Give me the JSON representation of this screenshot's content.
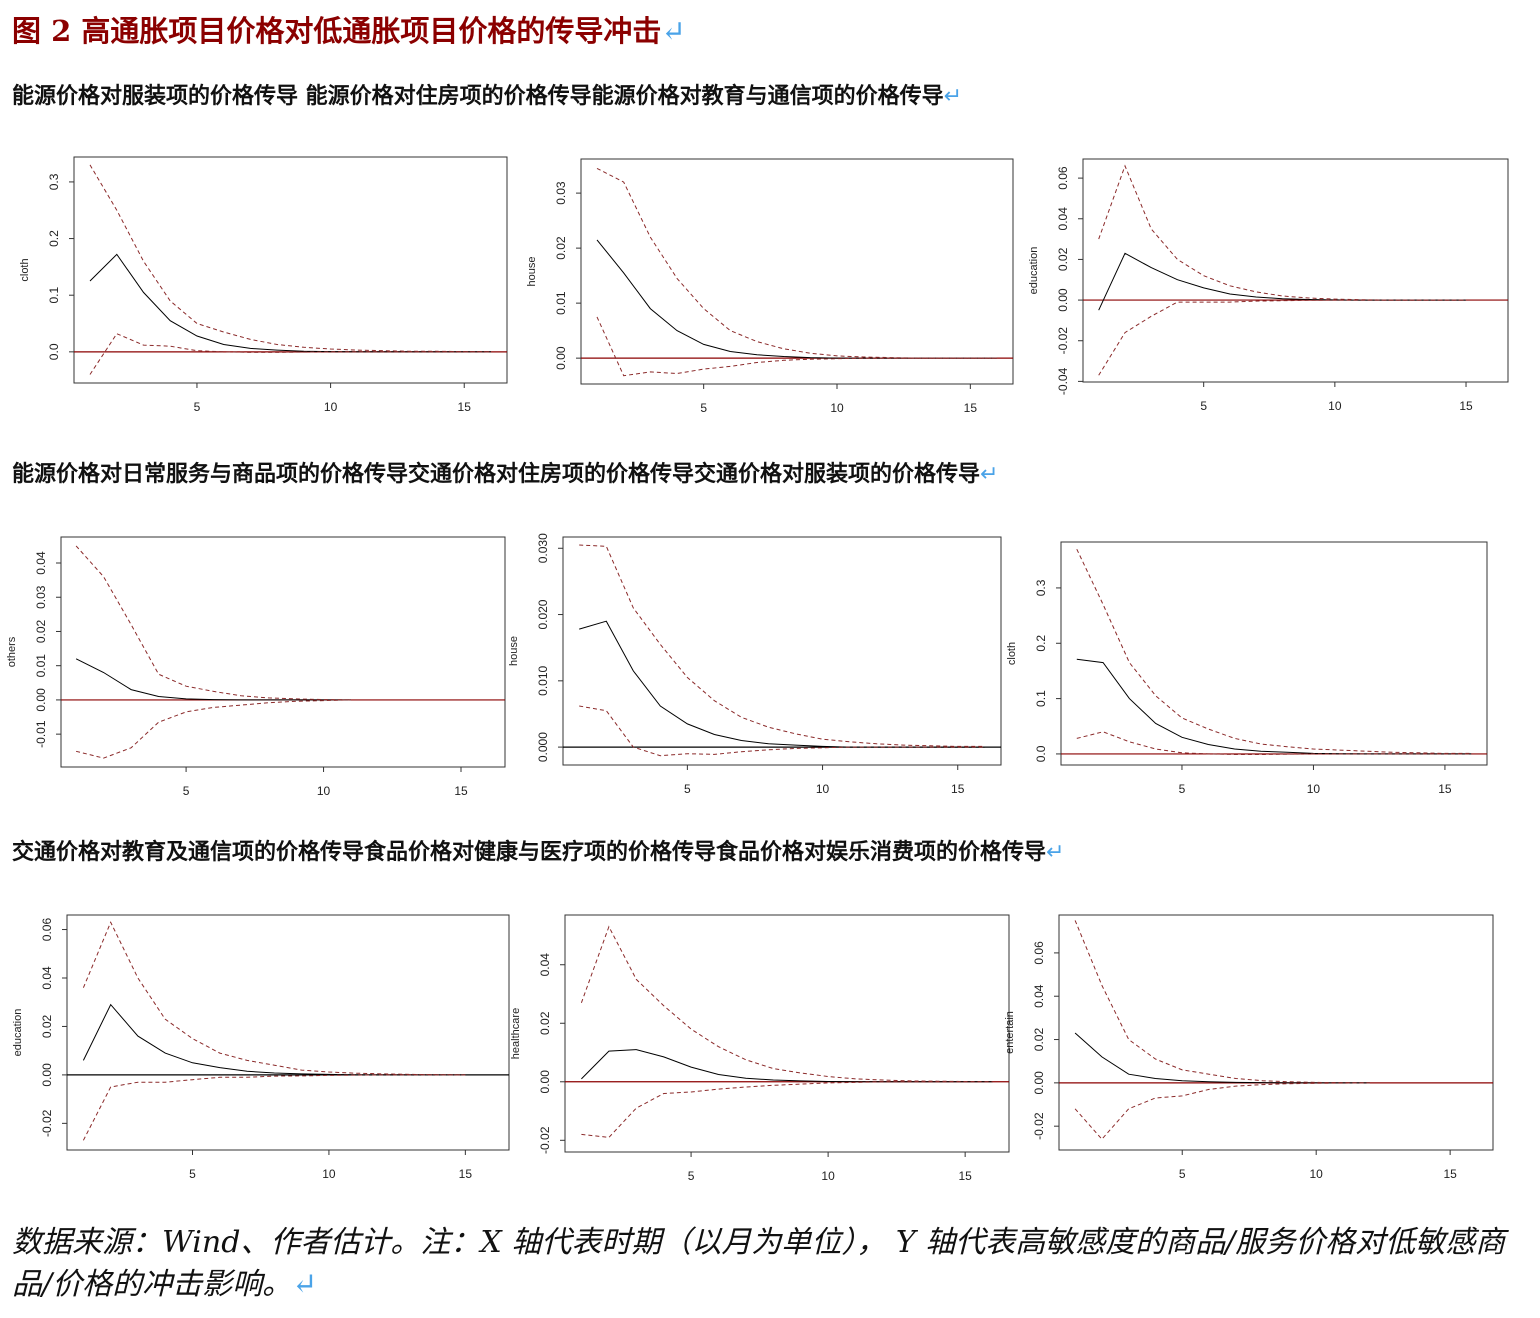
{
  "title": "图 2 高通胀项目价格对低通胀项目价格的传导冲击",
  "rows": [
    "能源价格对服装项的价格传导 能源价格对住房项的价格传导能源价格对教育与通信项的价格传导",
    "能源价格对日常服务与商品项的价格传导交通价格对住房项的价格传导交通价格对服装项的价格传导",
    "交通价格对教育及通信项的价格传导食品价格对健康与医疗项的价格传导食品价格对娱乐消费项的价格传导"
  ],
  "chart_data": [
    {
      "type": "line",
      "y_label": "cloth",
      "x": [
        1,
        2,
        3,
        4,
        5,
        6,
        7,
        8,
        9,
        10,
        11,
        12,
        13,
        14,
        15,
        16
      ],
      "xlim": [
        0.4,
        16.6
      ],
      "xticks": [
        5,
        10,
        15
      ],
      "ylim": [
        -0.055,
        0.344
      ],
      "yticks": [
        {
          "value": 0,
          "label": "0.0"
        },
        0.1,
        0.2,
        0.3
      ],
      "hline": 0,
      "hline_color": "#8b0000",
      "series": [
        {
          "color": "#000000",
          "style": "solid",
          "values": [
            0.125,
            0.172,
            0.105,
            0.055,
            0.028,
            0.013,
            0.006,
            0.003,
            0.001,
            0.0005,
            0,
            0,
            0,
            0,
            0,
            0
          ]
        },
        {
          "color": "#8b2a2a",
          "style": "dashed",
          "values": [
            0.33,
            0.25,
            0.16,
            0.09,
            0.05,
            0.035,
            0.022,
            0.013,
            0.008,
            0.005,
            0.003,
            0.002,
            0.001,
            0.001,
            0.0005,
            0.0003
          ]
        },
        {
          "color": "#8b2a2a",
          "style": "dashed",
          "values": [
            -0.04,
            0.032,
            0.012,
            0.01,
            0.002,
            0,
            -0.001,
            -0.001,
            -0.0005,
            0,
            0,
            0,
            0,
            0,
            0,
            0
          ]
        }
      ]
    },
    {
      "type": "line",
      "y_label": "house",
      "x": [
        1,
        2,
        3,
        4,
        5,
        6,
        7,
        8,
        9,
        10,
        11,
        12,
        13,
        14,
        15,
        16
      ],
      "xlim": [
        0.4,
        16.6
      ],
      "xticks": [
        5,
        10,
        15
      ],
      "ylim": [
        -0.0047,
        0.0362
      ],
      "yticks": [
        {
          "value": 0,
          "label": "0.00"
        },
        0.01,
        0.02,
        0.03
      ],
      "hline": 0,
      "hline_color": "#8b0000",
      "series": [
        {
          "color": "#000000",
          "style": "solid",
          "values": [
            0.0215,
            0.0155,
            0.009,
            0.005,
            0.0025,
            0.0012,
            0.0006,
            0.0003,
            0.0001,
            0,
            0,
            0,
            0,
            0,
            0,
            0
          ]
        },
        {
          "color": "#8b2a2a",
          "style": "dashed",
          "values": [
            0.0345,
            0.032,
            0.022,
            0.0145,
            0.009,
            0.005,
            0.003,
            0.0017,
            0.0009,
            0.0004,
            0.0002,
            0.0001,
            0,
            0,
            0,
            0
          ]
        },
        {
          "color": "#8b2a2a",
          "style": "dashed",
          "values": [
            0.0075,
            -0.0032,
            -0.0025,
            -0.0028,
            -0.002,
            -0.0015,
            -0.0008,
            -0.0004,
            -0.0002,
            -0.0001,
            0,
            0,
            0,
            0,
            0,
            0
          ]
        }
      ]
    },
    {
      "type": "line",
      "y_label": "education",
      "x": [
        1,
        2,
        3,
        4,
        5,
        6,
        7,
        8,
        9,
        10,
        11,
        12,
        13,
        14,
        15
      ],
      "xlim": [
        0.4,
        16.6
      ],
      "xticks": [
        5,
        10,
        15
      ],
      "ylim": [
        -0.0403,
        0.0694
      ],
      "yticks": [
        -0.04,
        -0.02,
        {
          "value": 0,
          "label": "0.00"
        },
        0.02,
        0.04,
        0.06
      ],
      "hline": 0,
      "hline_color": "#8b0000",
      "series": [
        {
          "color": "#000000",
          "style": "solid",
          "values": [
            -0.005,
            0.023,
            0.016,
            0.01,
            0.006,
            0.003,
            0.0015,
            0.0007,
            0.0003,
            0.0001,
            0,
            0,
            0,
            0,
            0
          ]
        },
        {
          "color": "#8b2a2a",
          "style": "dashed",
          "values": [
            0.03,
            0.066,
            0.035,
            0.02,
            0.012,
            0.007,
            0.004,
            0.002,
            0.001,
            0.0005,
            0.0002,
            0,
            0,
            0,
            0
          ]
        },
        {
          "color": "#8b2a2a",
          "style": "dashed",
          "values": [
            -0.037,
            -0.016,
            -0.008,
            -0.001,
            -0.001,
            -0.001,
            -0.0005,
            -0.0003,
            -0.0001,
            0,
            0,
            0,
            0,
            0,
            0
          ]
        }
      ]
    },
    {
      "type": "line",
      "y_label": "others",
      "x": [
        1,
        2,
        3,
        4,
        5,
        6,
        7,
        8,
        9,
        10,
        11
      ],
      "xlim": [
        0.45,
        16.6
      ],
      "xticks": [
        5,
        10,
        15
      ],
      "ylim": [
        -0.0196,
        0.0476
      ],
      "yticks": [
        -0.01,
        {
          "value": 0,
          "label": "0.00"
        },
        0.01,
        0.02,
        0.03,
        0.04
      ],
      "hline": 0,
      "hline_color": "#8b0000",
      "series": [
        {
          "color": "#000000",
          "style": "solid",
          "values": [
            0.012,
            0.008,
            0.003,
            0.001,
            0.0003,
            0.0001,
            0,
            0,
            0,
            0,
            0
          ]
        },
        {
          "color": "#8b2a2a",
          "style": "dashed",
          "values": [
            0.045,
            0.036,
            0.022,
            0.0075,
            0.004,
            0.0025,
            0.0012,
            0.0006,
            0.0003,
            0.0001,
            0
          ]
        },
        {
          "color": "#8b2a2a",
          "style": "dashed",
          "values": [
            -0.015,
            -0.017,
            -0.014,
            -0.0065,
            -0.0035,
            -0.0022,
            -0.0015,
            -0.0008,
            -0.0004,
            -0.0002,
            0
          ]
        }
      ]
    },
    {
      "type": "line",
      "y_label": "house",
      "x": [
        1,
        2,
        3,
        4,
        5,
        6,
        7,
        8,
        9,
        10,
        11,
        12,
        13,
        14,
        15,
        16
      ],
      "xlim": [
        0.4,
        16.6
      ],
      "xticks": [
        5,
        10,
        15
      ],
      "ylim": [
        -0.0027,
        0.0317
      ],
      "yticks": [
        {
          "value": 0,
          "label": "0.000"
        },
        {
          "value": 0.01,
          "label": "0.010"
        },
        {
          "value": 0.02,
          "label": "0.020"
        },
        {
          "value": 0.03,
          "label": "0.030"
        }
      ],
      "hline": 0,
      "hline_color": "#000000",
      "series": [
        {
          "color": "#000000",
          "style": "solid",
          "values": [
            0.0178,
            0.019,
            0.0115,
            0.0062,
            0.0035,
            0.0019,
            0.001,
            0.0005,
            0.0003,
            0.0001,
            0,
            0,
            0,
            0,
            0,
            0
          ]
        },
        {
          "color": "#8b2a2a",
          "style": "dashed",
          "values": [
            0.0305,
            0.0303,
            0.021,
            0.0155,
            0.0105,
            0.007,
            0.0045,
            0.003,
            0.002,
            0.0012,
            0.0008,
            0.0005,
            0.0003,
            0.0002,
            0.0001,
            0.0001
          ]
        },
        {
          "color": "#8b2a2a",
          "style": "dashed",
          "values": [
            0.0062,
            0.0055,
            0,
            -0.0013,
            -0.001,
            -0.0011,
            -0.0007,
            -0.0004,
            -0.0002,
            -0.0001,
            0,
            0,
            0,
            0,
            0,
            0
          ]
        }
      ]
    },
    {
      "type": "line",
      "y_label": "cloth",
      "x": [
        1,
        2,
        3,
        4,
        5,
        6,
        7,
        8,
        9,
        10,
        11,
        12,
        13,
        14,
        15,
        16
      ],
      "xlim": [
        0.4,
        16.6
      ],
      "xticks": [
        5,
        10,
        15
      ],
      "ylim": [
        -0.02,
        0.383
      ],
      "yticks": [
        {
          "value": 0,
          "label": "0.0"
        },
        0.1,
        0.2,
        0.3
      ],
      "hline": 0,
      "hline_color": "#8b0000",
      "series": [
        {
          "color": "#000000",
          "style": "solid",
          "values": [
            0.171,
            0.165,
            0.1,
            0.055,
            0.03,
            0.017,
            0.009,
            0.005,
            0.003,
            0.001,
            0.0005,
            0,
            0,
            0,
            0,
            0
          ]
        },
        {
          "color": "#8b2a2a",
          "style": "dashed",
          "values": [
            0.37,
            0.27,
            0.165,
            0.105,
            0.065,
            0.045,
            0.028,
            0.018,
            0.013,
            0.009,
            0.007,
            0.005,
            0.003,
            0.002,
            0.001,
            0.001
          ]
        },
        {
          "color": "#8b2a2a",
          "style": "dashed",
          "values": [
            0.028,
            0.04,
            0.022,
            0.009,
            0.002,
            0,
            -0.001,
            -0.001,
            -0.0005,
            0,
            0,
            0,
            0,
            0,
            0,
            0
          ]
        }
      ]
    },
    {
      "type": "line",
      "y_label": "education",
      "x": [
        1,
        2,
        3,
        4,
        5,
        6,
        7,
        8,
        9,
        10,
        11,
        12,
        13,
        14,
        15
      ],
      "xlim": [
        0.4,
        16.6
      ],
      "xticks": [
        5,
        10,
        15
      ],
      "ylim": [
        -0.031,
        0.066
      ],
      "yticks": [
        -0.02,
        {
          "value": 0,
          "label": "0.00"
        },
        0.02,
        0.04,
        0.06
      ],
      "hline": 0,
      "hline_color": "#000000",
      "series": [
        {
          "color": "#000000",
          "style": "solid",
          "values": [
            0.006,
            0.029,
            0.016,
            0.009,
            0.005,
            0.003,
            0.0015,
            0.0008,
            0.0004,
            0.0002,
            0,
            0,
            0,
            0,
            0
          ]
        },
        {
          "color": "#8b2a2a",
          "style": "dashed",
          "values": [
            0.036,
            0.063,
            0.04,
            0.023,
            0.015,
            0.009,
            0.006,
            0.004,
            0.002,
            0.0012,
            0.0007,
            0.0004,
            0.0002,
            0.0001,
            0
          ]
        },
        {
          "color": "#8b2a2a",
          "style": "dashed",
          "values": [
            -0.027,
            -0.005,
            -0.003,
            -0.003,
            -0.002,
            -0.001,
            -0.001,
            -0.0005,
            -0.0004,
            -0.0002,
            -0.0001,
            0,
            0,
            0,
            0
          ]
        }
      ]
    },
    {
      "type": "line",
      "y_label": "healthcare",
      "x": [
        1,
        2,
        3,
        4,
        5,
        6,
        7,
        8,
        9,
        10,
        11,
        12,
        13,
        14,
        15,
        16
      ],
      "xlim": [
        0.4,
        16.6
      ],
      "xticks": [
        5,
        10,
        15
      ],
      "ylim": [
        -0.024,
        0.057
      ],
      "yticks": [
        -0.02,
        {
          "value": 0,
          "label": "0.00"
        },
        0.02,
        0.04
      ],
      "hline": 0,
      "hline_color": "#8b0000",
      "series": [
        {
          "color": "#000000",
          "style": "solid",
          "values": [
            0.001,
            0.0105,
            0.011,
            0.0085,
            0.005,
            0.0025,
            0.0012,
            0.0006,
            0.0003,
            0.0001,
            0,
            0,
            0,
            0,
            0,
            0
          ]
        },
        {
          "color": "#8b2a2a",
          "style": "dashed",
          "values": [
            0.027,
            0.053,
            0.035,
            0.026,
            0.018,
            0.012,
            0.0075,
            0.0045,
            0.003,
            0.0018,
            0.001,
            0.0006,
            0.0003,
            0.0002,
            0.0001,
            0
          ]
        },
        {
          "color": "#8b2a2a",
          "style": "dashed",
          "values": [
            -0.018,
            -0.019,
            -0.009,
            -0.004,
            -0.0035,
            -0.0025,
            -0.0018,
            -0.0012,
            -0.0008,
            -0.0004,
            -0.0002,
            0,
            0,
            0,
            0,
            0
          ]
        }
      ]
    },
    {
      "type": "line",
      "y_label": "entertain",
      "x": [
        1,
        2,
        3,
        4,
        5,
        6,
        7,
        8,
        9,
        10,
        11,
        12
      ],
      "xlim": [
        0.4,
        16.6
      ],
      "xticks": [
        5,
        10,
        15
      ],
      "ylim": [
        -0.031,
        0.0775
      ],
      "yticks": [
        -0.02,
        {
          "value": 0,
          "label": "0.00"
        },
        0.02,
        0.04,
        0.06
      ],
      "hline": 0,
      "hline_color": "#8b0000",
      "series": [
        {
          "color": "#000000",
          "style": "solid",
          "values": [
            0.023,
            0.012,
            0.004,
            0.002,
            0.001,
            0.0005,
            0.0002,
            0.0001,
            0,
            0,
            0,
            0
          ]
        },
        {
          "color": "#8b2a2a",
          "style": "dashed",
          "values": [
            0.075,
            0.045,
            0.02,
            0.011,
            0.006,
            0.004,
            0.002,
            0.001,
            0.0005,
            0.0002,
            0.0001,
            0
          ]
        },
        {
          "color": "#8b2a2a",
          "style": "dashed",
          "values": [
            -0.012,
            -0.026,
            -0.012,
            -0.007,
            -0.006,
            -0.003,
            -0.0015,
            -0.0008,
            -0.0004,
            -0.0002,
            -0.0001,
            0
          ]
        }
      ]
    }
  ],
  "note": "数据来源：Wind、作者估计。注：X 轴代表时期（以月为单位）， Y 轴代表高敏感度的商品/服务价格对低敏感商品/价格的冲击影响。"
}
